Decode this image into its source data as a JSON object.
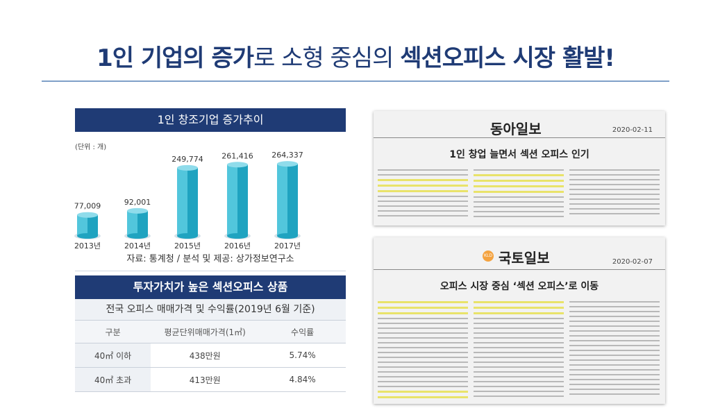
{
  "headline": {
    "part1": "1인 기업의 증가",
    "part2": "로 소형 중심의 ",
    "part3": "섹션오피스 시장 활발!"
  },
  "chart_panel": {
    "title": "1인 창조기업 증가추이",
    "unit": "(단위 : 개)",
    "source": "자료: 통계청 / 분석 및 제공: 상가정보연구소"
  },
  "chart_data": {
    "type": "bar",
    "title": "1인 창조기업 증가추이",
    "categories": [
      "2013년",
      "2014년",
      "2015년",
      "2016년",
      "2017년"
    ],
    "values": [
      77009,
      92001,
      249774,
      261416,
      264337
    ],
    "value_labels": [
      "77,009",
      "92,001",
      "249,774",
      "261,416",
      "264,337"
    ],
    "colors": {
      "bar_light": "#52c6dc",
      "bar_dark": "#1fa3c0",
      "bar_top": "#8fdceb"
    }
  },
  "price_table": {
    "title": "투자가치가 높은 섹션오피스 상품",
    "subtitle": "전국 오피스 매매가격 및 수익률(2019년 6월 기준)",
    "headers": [
      "구분",
      "평균단위매매가격(1㎡)",
      "수익률"
    ],
    "rows": [
      [
        "40㎡ 이하",
        "438만원",
        "5.74%"
      ],
      [
        "40㎡ 초과",
        "413만원",
        "4.84%"
      ]
    ]
  },
  "articles": [
    {
      "paper": "동아일보",
      "date": "2020-02-11",
      "title": "1인 창업 늘면서 섹션 오피스 인기"
    },
    {
      "paper": "국토일보",
      "date": "2020-02-07",
      "title": "오피스 시장 중심 ‘섹션 오피스’로 이동"
    }
  ],
  "colors": {
    "navy": "#1f3b75",
    "highlight": "#e9e36a"
  }
}
